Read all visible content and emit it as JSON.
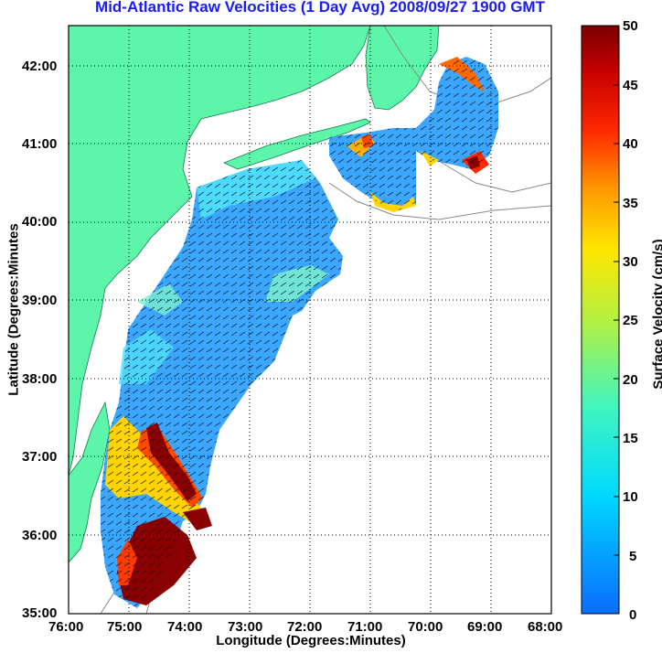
{
  "title": "Mid-Atlantic Raw Velocities (1 Day Avg) 2008/09/27 1900 GMT",
  "axes": {
    "xlabel": "Longitude (Degrees:Minutes)",
    "ylabel": "Latitude (Degrees:Minutes",
    "xticks": [
      "76:00",
      "75:00",
      "74:00",
      "73:00",
      "72:00",
      "71:00",
      "70:00",
      "69:00",
      "68:00"
    ],
    "yticks": [
      "42:00",
      "41:00",
      "40:00",
      "39:00",
      "38:00",
      "37:00",
      "36:00",
      "35:00"
    ]
  },
  "colorbar": {
    "label": "Surface Velocity (cm/s)",
    "ticks": [
      "50",
      "45",
      "40",
      "35",
      "30",
      "25",
      "20",
      "15",
      "10",
      "5",
      "0"
    ]
  },
  "colors": {
    "land": "#5cf5aa",
    "title": "#1a1aff",
    "low": "#0a6cff",
    "high": "#8b0000"
  }
}
